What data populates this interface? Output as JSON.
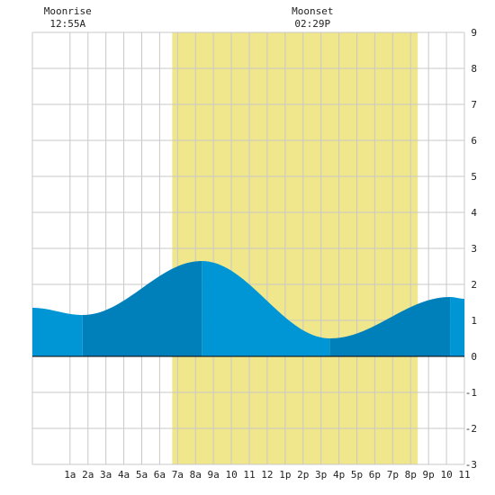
{
  "moonrise": {
    "label": "Moonrise",
    "time": "12:55A"
  },
  "moonset": {
    "label": "Moonset",
    "time": "02:29P"
  },
  "chart_data": {
    "type": "area",
    "x_unit": "hour of day",
    "xlim": [
      -1.1,
      23.0
    ],
    "ylim": [
      -3,
      9
    ],
    "grid": true,
    "x_tick_labels": [
      "1a",
      "2a",
      "3a",
      "4a",
      "5a",
      "6a",
      "7a",
      "8a",
      "9a",
      "10",
      "11",
      "12",
      "1p",
      "2p",
      "3p",
      "4p",
      "5p",
      "6p",
      "7p",
      "8p",
      "9p",
      "10",
      "11"
    ],
    "y_ticks": [
      -3,
      -2,
      -1,
      0,
      1,
      2,
      3,
      4,
      5,
      6,
      7,
      8,
      9
    ],
    "daylight": {
      "start": 6.7,
      "end": 20.4
    },
    "moonrise_hour": 0.92,
    "moonset_hour": 14.48,
    "tide_extremes": [
      {
        "hour": -1.1,
        "height": 1.35,
        "type": "start"
      },
      {
        "hour": 1.7,
        "height": 1.15,
        "type": "low"
      },
      {
        "hour": 8.35,
        "height": 2.65,
        "type": "high"
      },
      {
        "hour": 15.5,
        "height": 0.5,
        "type": "low"
      },
      {
        "hour": 22.2,
        "height": 1.65,
        "type": "high"
      },
      {
        "hour": 23.0,
        "height": 1.6,
        "type": "end"
      }
    ],
    "colors": {
      "daylight": "#f0e68c",
      "tide_light": "#0096d6",
      "tide_dark": "#0080bb",
      "grid": "#c8c8c8",
      "zero_line": "#000000"
    }
  }
}
